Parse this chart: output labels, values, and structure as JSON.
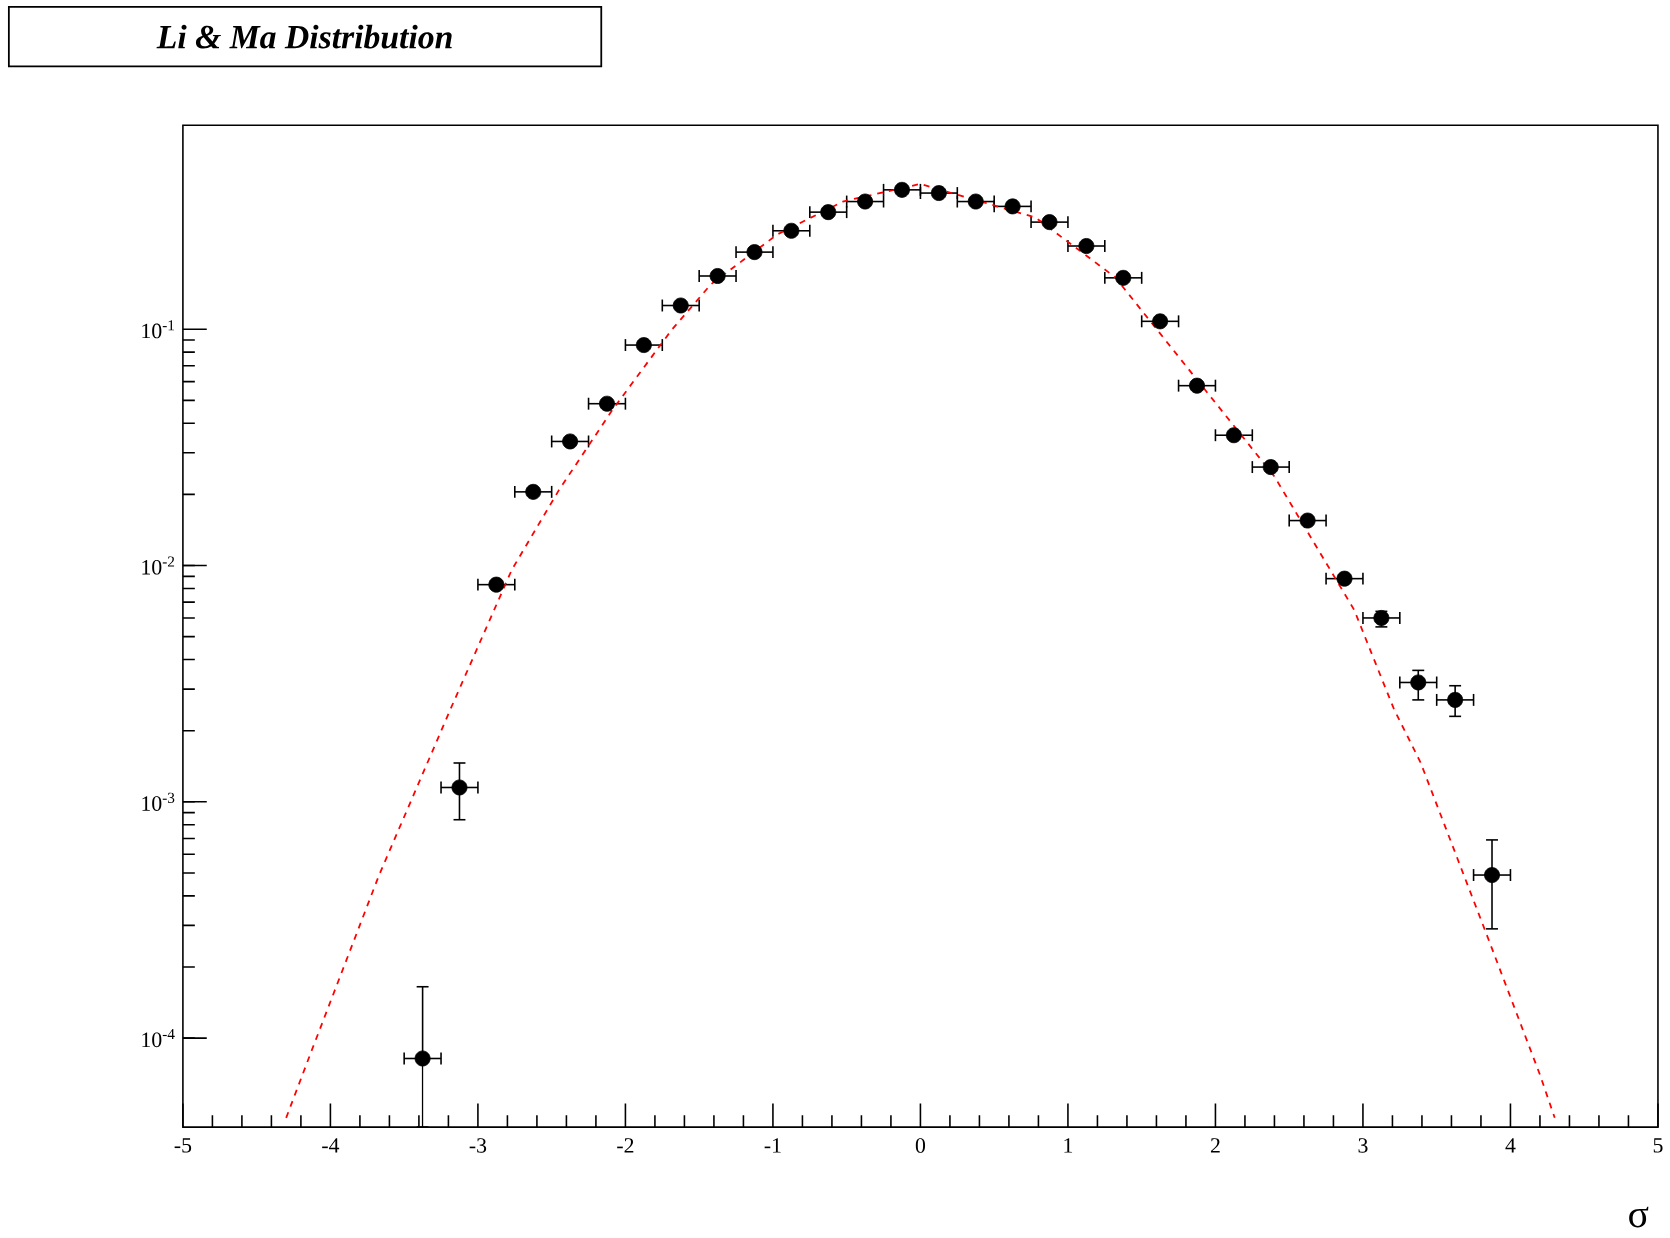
{
  "chart_data": {
    "type": "scatter",
    "title": "Li & Ma Distribution",
    "xlabel": "σ",
    "xlim": [
      -5,
      5
    ],
    "xticks": [
      -5,
      -4,
      -3,
      -2,
      -1,
      0,
      1,
      2,
      3,
      4,
      5
    ],
    "ylim": [
      4.2e-05,
      0.73
    ],
    "yticks": [
      {
        "value": 0.0001,
        "label": "10$^{-4}$"
      },
      {
        "value": 0.001,
        "label": "10$^{-3}$"
      },
      {
        "value": 0.01,
        "label": "10$^{-2}$"
      },
      {
        "value": 0.1,
        "label": "10$^{-1}$"
      }
    ],
    "log": "y",
    "series": [
      {
        "color": "#000000",
        "marker": "circle",
        "x": [
          -3.375,
          -3.125,
          -2.875,
          -2.625,
          -2.375,
          -2.125,
          -1.875,
          -1.625,
          -1.375,
          -1.125,
          -0.875,
          -0.625,
          -0.375,
          -0.125,
          0.125,
          0.375,
          0.625,
          0.875,
          1.125,
          1.375,
          1.625,
          1.875,
          2.125,
          2.375,
          2.625,
          2.875,
          3.125,
          3.375,
          3.625,
          3.875
        ],
        "values": [
          8.2e-05,
          0.00115,
          0.0083,
          0.0205,
          0.0335,
          0.0484,
          0.0857,
          0.126,
          0.168,
          0.212,
          0.261,
          0.313,
          0.347,
          0.389,
          0.377,
          0.347,
          0.331,
          0.284,
          0.225,
          0.165,
          0.108,
          0.0577,
          0.0356,
          0.0261,
          0.0155,
          0.0088,
          0.006,
          0.0032,
          0.0027,
          0.00049
        ],
        "errors": [
          [
            4.2e-05,
            0.000165
          ],
          [
            0.00084,
            0.00146
          ],
          null,
          null,
          null,
          null,
          null,
          null,
          null,
          null,
          null,
          null,
          null,
          null,
          null,
          null,
          null,
          null,
          null,
          null,
          null,
          null,
          null,
          null,
          null,
          null,
          [
            0.0055,
            0.0064
          ],
          [
            0.0027,
            0.0036
          ],
          [
            0.0023,
            0.0031
          ],
          [
            0.00029,
            0.00069
          ]
        ],
        "xerrors": [
          0.125,
          0.125,
          0.125,
          0.125,
          0.125,
          0.125,
          0.125,
          0.125,
          0.125,
          0.125,
          0.125,
          0.125,
          0.125,
          0.125,
          0.125,
          0.125,
          0.125,
          0.125,
          0.125,
          0.125,
          0.125,
          0.125,
          0.125,
          0.125,
          0.125,
          0.125,
          0.125,
          0.125,
          0.125,
          0.125
        ]
      },
      {
        "type": "line",
        "color": "#ff0000",
        "line_style": "dashed",
        "marker": "none",
        "x": [
          -4.3,
          -4.12,
          -3.67,
          -3.17,
          -2.77,
          -2.45,
          -2.09,
          -1.69,
          -1.42,
          -0.97,
          -0.52,
          0,
          0.78,
          1.32,
          1.86,
          2.4,
          2.94,
          3.21,
          3.39,
          3.84,
          4.2,
          4.3
        ],
        "values": [
          4.6e-05,
          9.1e-05,
          0.00049,
          0.0026,
          0.0096,
          0.0209,
          0.0454,
          0.0987,
          0.155,
          0.252,
          0.348,
          0.412,
          0.297,
          0.166,
          0.0628,
          0.0238,
          0.0065,
          0.00247,
          0.00147,
          0.000273,
          7e-05,
          4.6e-05
        ]
      }
    ]
  }
}
